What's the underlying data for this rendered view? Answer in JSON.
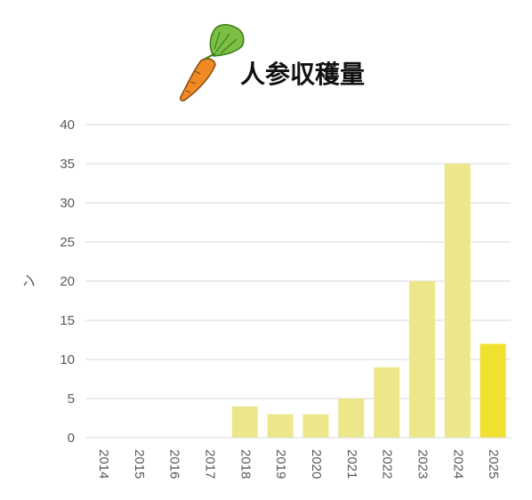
{
  "chart_data": {
    "type": "bar",
    "title": "人参収穫量",
    "xlabel": "",
    "ylabel": "ン",
    "categories": [
      "2014",
      "2015",
      "2016",
      "2017",
      "2018",
      "2019",
      "2020",
      "2021",
      "2022",
      "2023",
      "2024",
      "2025"
    ],
    "values": [
      0,
      0,
      0,
      0,
      4,
      3,
      3,
      5,
      9,
      20,
      35,
      12
    ],
    "ylim": [
      0,
      40
    ],
    "yticks": [
      0,
      5,
      10,
      15,
      20,
      25,
      30,
      35,
      40
    ],
    "grid": true,
    "legend": "none",
    "colors": {
      "bar": "#ede78b",
      "highlight_bar": "#f0e131",
      "highlight_category": "2025",
      "gridline": "#d9d9d9",
      "tick_text": "#595959",
      "carrot": "#f08a24",
      "leaves": "#7bc043"
    },
    "title_icon": "carrot-icon"
  }
}
